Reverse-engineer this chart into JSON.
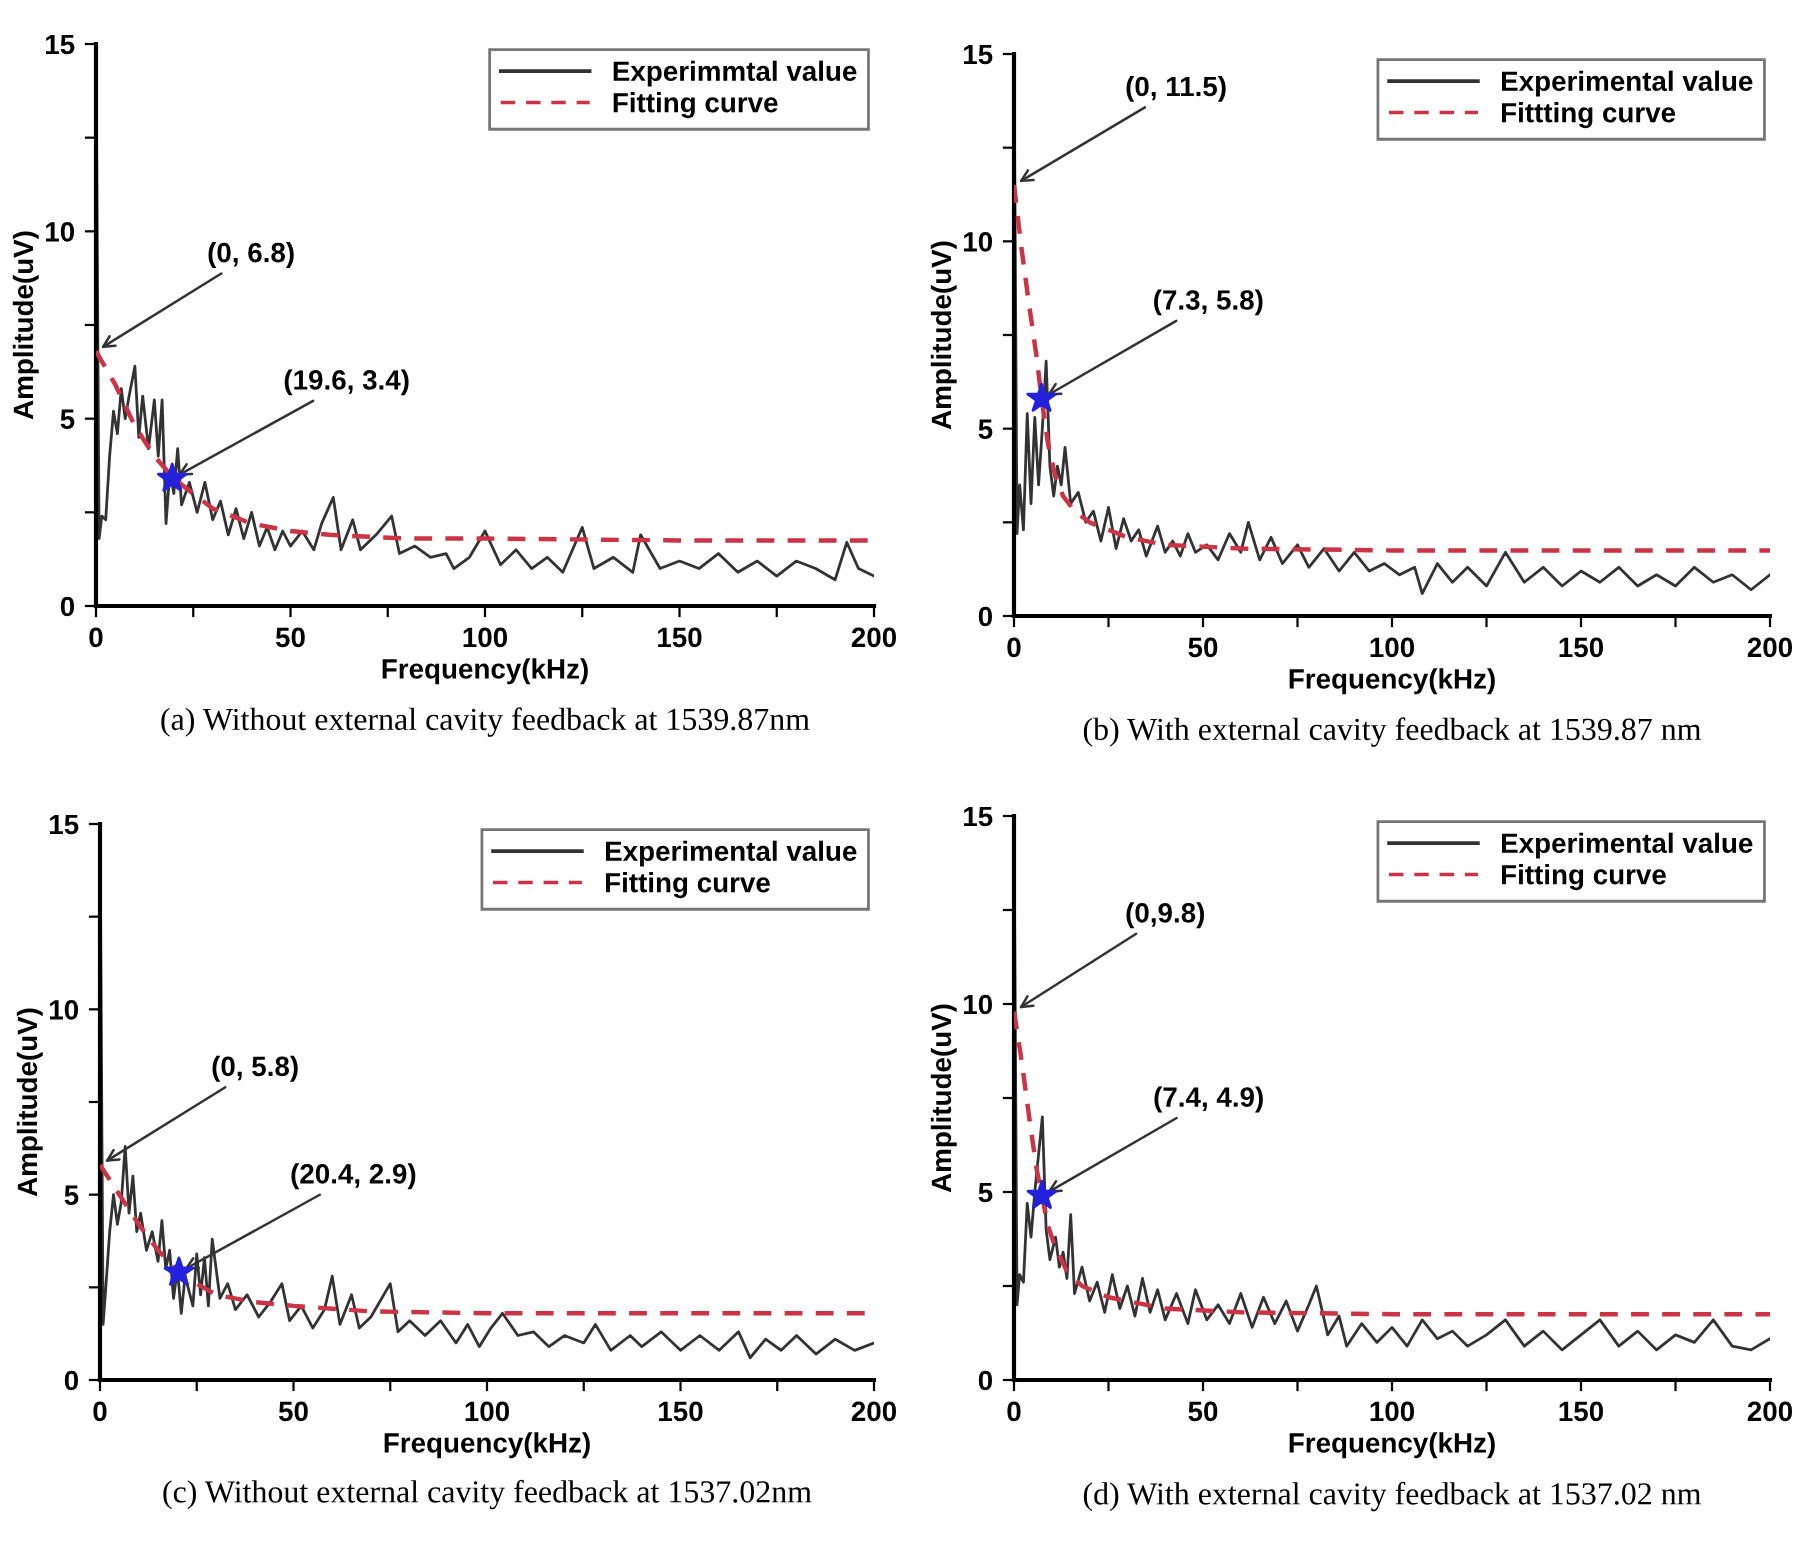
{
  "chart_data": [
    {
      "type": "line",
      "title": "(a) Without external cavity feedback at 1539.87nm",
      "xlabel": "Frequency(kHz)",
      "ylabel": "Amplitude(uV)",
      "xlim": [
        0,
        200
      ],
      "ylim": [
        0,
        15
      ],
      "xticks": [
        0,
        {
          "value": 25,
          "label": null
        },
        50,
        {
          "value": 75,
          "label": null
        },
        100,
        {
          "value": 125,
          "label": null
        },
        150,
        {
          "value": 175,
          "label": null
        },
        200
      ],
      "yticks": [
        0,
        {
          "value": 2.5,
          "label": null
        },
        5,
        {
          "value": 7.5,
          "label": null
        },
        10,
        {
          "value": 12.5,
          "label": null
        },
        15
      ],
      "grid": false,
      "legend": "top right",
      "annotations": [
        {
          "text": "(0, 6.8)",
          "x": 0,
          "y": 6.8
        },
        {
          "text": "(19.6, 3.4)",
          "x": 19.6,
          "y": 3.4
        }
      ],
      "series": [
        {
          "name": "Experimmtal value",
          "line_style": "solid",
          "color": "#333333",
          "x": [
            0,
            0.8,
            1.5,
            2.5,
            3.5,
            4.5,
            5.5,
            6.5,
            7.5,
            8.5,
            10,
            11,
            12,
            13.5,
            15,
            16,
            17,
            18,
            19,
            20,
            21,
            22,
            24,
            26,
            28,
            30,
            32,
            34,
            36,
            38,
            40,
            42,
            44,
            46,
            48,
            50,
            53,
            56,
            58,
            61,
            63,
            66,
            68,
            72,
            76,
            78,
            82,
            86,
            90,
            92,
            96,
            100,
            104,
            108,
            112,
            116,
            120,
            125,
            128,
            133,
            138,
            140,
            145,
            150,
            155,
            160,
            165,
            170,
            175,
            180,
            185,
            190,
            193,
            196,
            200
          ],
          "values": [
            15,
            1.8,
            2.4,
            2.3,
            4.0,
            5.2,
            4.6,
            5.8,
            5.0,
            5.6,
            6.4,
            4.5,
            5.6,
            4.2,
            5.5,
            4.0,
            5.5,
            2.2,
            3.6,
            3.0,
            4.2,
            2.7,
            3.3,
            2.5,
            3.3,
            2.3,
            2.8,
            1.9,
            2.6,
            1.8,
            2.5,
            1.6,
            2.1,
            1.5,
            2.0,
            1.6,
            2.0,
            1.5,
            2.2,
            2.9,
            1.5,
            2.3,
            1.5,
            1.9,
            2.4,
            1.4,
            1.6,
            1.3,
            1.4,
            1.0,
            1.3,
            2.0,
            1.1,
            1.5,
            1.0,
            1.3,
            0.9,
            2.1,
            1.0,
            1.3,
            0.9,
            1.9,
            1.0,
            1.2,
            1.0,
            1.4,
            0.9,
            1.2,
            0.8,
            1.2,
            1.0,
            0.7,
            1.7,
            1.0,
            0.8
          ]
        },
        {
          "name": "Fitting curve",
          "line_style": "dashed",
          "color": "#cc3344",
          "x": [
            0,
            5,
            10,
            15,
            20,
            25,
            30,
            40,
            50,
            60,
            80,
            100,
            150,
            200
          ],
          "values": [
            6.8,
            5.9,
            4.8,
            4.0,
            3.4,
            3.0,
            2.6,
            2.2,
            2.0,
            1.9,
            1.8,
            1.8,
            1.75,
            1.75
          ]
        },
        {
          "type": "scatter",
          "marker": "star",
          "color": "#2222dd",
          "x": [
            19.6
          ],
          "values": [
            3.4
          ]
        }
      ]
    },
    {
      "type": "line",
      "title": "(b) With external cavity feedback at 1539.87 nm",
      "xlabel": "Frequency(kHz)",
      "ylabel": "Amplitude(uV)",
      "xlim": [
        0,
        200
      ],
      "ylim": [
        0,
        15
      ],
      "xticks": [
        0,
        {
          "value": 25,
          "label": null
        },
        50,
        {
          "value": 75,
          "label": null
        },
        100,
        {
          "value": 125,
          "label": null
        },
        150,
        {
          "value": 175,
          "label": null
        },
        200
      ],
      "yticks": [
        0,
        {
          "value": 2.5,
          "label": null
        },
        5,
        {
          "value": 7.5,
          "label": null
        },
        10,
        {
          "value": 12.5,
          "label": null
        },
        15
      ],
      "grid": false,
      "legend": "top right",
      "annotations": [
        {
          "text": "(0, 11.5)",
          "x": 0,
          "y": 11.5
        },
        {
          "text": "(7.3, 5.8)",
          "x": 7.3,
          "y": 5.8
        }
      ],
      "series": [
        {
          "name": "Experimental value",
          "type": "line",
          "line_style": "solid",
          "color": "#333333",
          "x": [
            0,
            0.8,
            1.5,
            2.5,
            3.5,
            4.5,
            5.5,
            6.5,
            7.5,
            8.5,
            9.5,
            10.5,
            11.5,
            12.5,
            13.5,
            15,
            17,
            19,
            21,
            23,
            25,
            27,
            29,
            31,
            33,
            35,
            38,
            40,
            42,
            44,
            46,
            48,
            51,
            54,
            57,
            60,
            62,
            65,
            68,
            71,
            75,
            78,
            82,
            86,
            90,
            94,
            98,
            102,
            106,
            108,
            112,
            116,
            120,
            125,
            130,
            135,
            140,
            145,
            150,
            155,
            160,
            165,
            170,
            175,
            180,
            185,
            190,
            195,
            200
          ],
          "values": [
            15,
            2.2,
            3.5,
            2.3,
            5.4,
            3.0,
            5.3,
            3.5,
            5.0,
            6.8,
            4.0,
            3.2,
            4.0,
            3.5,
            4.5,
            3.0,
            3.3,
            2.5,
            2.8,
            2.0,
            2.9,
            1.8,
            2.6,
            2.0,
            2.3,
            1.6,
            2.4,
            1.7,
            2.0,
            1.6,
            2.2,
            1.7,
            1.9,
            1.5,
            2.2,
            1.7,
            2.5,
            1.5,
            2.1,
            1.4,
            1.9,
            1.3,
            1.8,
            1.2,
            1.7,
            1.2,
            1.4,
            1.1,
            1.3,
            0.6,
            1.4,
            0.9,
            1.3,
            0.8,
            1.7,
            0.9,
            1.3,
            0.8,
            1.2,
            0.9,
            1.3,
            0.8,
            1.1,
            0.8,
            1.3,
            0.9,
            1.1,
            0.7,
            1.1
          ]
        },
        {
          "name": "Fittting curve",
          "line_style": "dashed",
          "color": "#cc3344",
          "x": [
            0,
            2,
            4,
            6,
            7.3,
            9,
            11,
            13,
            16,
            20,
            30,
            40,
            60,
            100,
            200
          ],
          "values": [
            11.5,
            9.8,
            8.3,
            6.9,
            5.8,
            4.6,
            3.7,
            3.2,
            2.8,
            2.5,
            2.1,
            1.9,
            1.8,
            1.75,
            1.75
          ]
        },
        {
          "type": "scatter",
          "marker": "star",
          "color": "#2222dd",
          "x": [
            7.3
          ],
          "values": [
            5.8
          ]
        }
      ]
    },
    {
      "type": "line",
      "title": "(c) Without external cavity feedback at 1537.02nm",
      "xlabel": "Frequency(kHz)",
      "ylabel": "Amplitude(uV)",
      "xlim": [
        0,
        200
      ],
      "ylim": [
        0,
        15
      ],
      "xticks": [
        0,
        {
          "value": 25,
          "label": null
        },
        50,
        {
          "value": 75,
          "label": null
        },
        100,
        {
          "value": 125,
          "label": null
        },
        150,
        {
          "value": 175,
          "label": null
        },
        200
      ],
      "yticks": [
        0,
        {
          "value": 2.5,
          "label": null
        },
        5,
        {
          "value": 7.5,
          "label": null
        },
        10,
        {
          "value": 12.5,
          "label": null
        },
        15
      ],
      "grid": false,
      "legend": "top right",
      "annotations": [
        {
          "text": "(0, 5.8)",
          "x": 0,
          "y": 5.8
        },
        {
          "text": "(20.4, 2.9)",
          "x": 20.4,
          "y": 2.9
        }
      ],
      "series": [
        {
          "name": "Experimental value",
          "type": "line",
          "line_style": "solid",
          "color": "#333333",
          "x": [
            0,
            0.8,
            1.5,
            2.5,
            3.5,
            4.5,
            5.5,
            6.5,
            7.5,
            8.5,
            9.5,
            10.5,
            12,
            13.5,
            15,
            16,
            17,
            18,
            19,
            20,
            21,
            22,
            24,
            25,
            26,
            27,
            28,
            29,
            31,
            33,
            35,
            38,
            41,
            44,
            47,
            49,
            52,
            55,
            58,
            60,
            62,
            65,
            67,
            70,
            75,
            77,
            80,
            84,
            88,
            92,
            95,
            98,
            101,
            104,
            108,
            112,
            116,
            120,
            125,
            128,
            132,
            137,
            140,
            145,
            150,
            155,
            160,
            165,
            168,
            172,
            176,
            180,
            185,
            190,
            195,
            200
          ],
          "values": [
            15,
            1.5,
            2.5,
            4.0,
            5.0,
            4.2,
            4.8,
            6.3,
            4.5,
            5.5,
            4.0,
            4.5,
            3.5,
            4.0,
            3.2,
            4.3,
            3.0,
            3.5,
            2.2,
            3.0,
            1.8,
            2.8,
            2.0,
            3.4,
            2.3,
            3.3,
            2.0,
            3.8,
            2.2,
            2.6,
            1.9,
            2.3,
            1.7,
            2.1,
            2.6,
            1.6,
            2.0,
            1.4,
            1.9,
            2.8,
            1.5,
            2.3,
            1.4,
            1.7,
            2.6,
            1.3,
            1.6,
            1.2,
            1.6,
            1.0,
            1.5,
            0.9,
            1.4,
            1.8,
            1.2,
            1.3,
            0.9,
            1.2,
            1.0,
            1.5,
            0.8,
            1.2,
            0.9,
            1.3,
            0.8,
            1.2,
            0.8,
            1.3,
            0.6,
            1.1,
            0.8,
            1.2,
            0.7,
            1.1,
            0.8,
            1.0
          ]
        },
        {
          "name": "Fitting curve",
          "type": "line",
          "line_style": "dashed",
          "color": "#cc3344",
          "x": [
            0,
            5,
            10,
            15,
            20.4,
            25,
            30,
            40,
            50,
            70,
            100,
            200
          ],
          "values": [
            5.8,
            5.0,
            4.2,
            3.5,
            2.9,
            2.6,
            2.3,
            2.1,
            2.0,
            1.85,
            1.8,
            1.8
          ]
        },
        {
          "type": "scatter",
          "marker": "star",
          "color": "#2222dd",
          "x": [
            20.4
          ],
          "values": [
            2.9
          ]
        }
      ]
    },
    {
      "type": "line",
      "title": "(d) With external cavity feedback at 1537.02 nm",
      "xlabel": "Frequency(kHz)",
      "ylabel": "Amplitude(uV)",
      "xlim": [
        0,
        200
      ],
      "ylim": [
        0,
        15
      ],
      "xticks": [
        0,
        {
          "value": 25,
          "label": null
        },
        50,
        {
          "value": 75,
          "label": null
        },
        100,
        {
          "value": 125,
          "label": null
        },
        150,
        {
          "value": 175,
          "label": null
        },
        200
      ],
      "yticks": [
        0,
        {
          "value": 2.5,
          "label": null
        },
        5,
        {
          "value": 7.5,
          "label": null
        },
        10,
        {
          "value": 12.5,
          "label": null
        },
        15
      ],
      "grid": false,
      "legend": "top right",
      "annotations": [
        {
          "text": "(0,9.8)",
          "x": 0,
          "y": 9.8
        },
        {
          "text": "(7.4, 4.9)",
          "x": 7.4,
          "y": 4.9
        }
      ],
      "series": [
        {
          "name": "Experimental value",
          "type": "line",
          "line_style": "solid",
          "color": "#333333",
          "x": [
            0,
            0.8,
            1.5,
            2.5,
            3.5,
            4.5,
            5.5,
            6.5,
            7.5,
            8.5,
            9.5,
            11,
            12,
            13,
            14,
            15,
            16,
            18,
            20,
            22,
            24,
            26,
            28,
            30,
            32,
            34,
            36,
            38,
            40,
            43,
            46,
            48,
            51,
            54,
            57,
            60,
            63,
            66,
            69,
            72,
            75,
            78,
            80,
            83,
            86,
            88,
            92,
            96,
            100,
            104,
            108,
            112,
            116,
            120,
            125,
            130,
            135,
            140,
            145,
            150,
            155,
            160,
            165,
            170,
            175,
            180,
            185,
            190,
            195,
            200
          ],
          "values": [
            15,
            2.0,
            2.8,
            2.6,
            4.7,
            3.8,
            5.0,
            6.0,
            7.0,
            4.0,
            3.2,
            3.8,
            3.0,
            3.4,
            2.7,
            4.4,
            2.3,
            3.0,
            2.1,
            2.6,
            1.8,
            2.8,
            1.9,
            2.5,
            1.7,
            2.7,
            1.8,
            2.4,
            1.6,
            2.3,
            1.5,
            2.4,
            1.6,
            2.0,
            1.5,
            2.3,
            1.4,
            2.2,
            1.5,
            2.1,
            1.3,
            2.0,
            2.5,
            1.2,
            1.7,
            0.9,
            1.5,
            1.0,
            1.4,
            0.9,
            1.6,
            1.1,
            1.3,
            0.9,
            1.2,
            1.6,
            0.9,
            1.3,
            0.8,
            1.2,
            1.6,
            0.9,
            1.3,
            0.8,
            1.2,
            1.0,
            1.6,
            0.9,
            0.8,
            1.1
          ]
        },
        {
          "name": "Fitting curve",
          "type": "line",
          "line_style": "dashed",
          "color": "#cc3344",
          "x": [
            0,
            2,
            4,
            6,
            7.4,
            9,
            11,
            14,
            18,
            25,
            40,
            60,
            100,
            200
          ],
          "values": [
            9.8,
            8.5,
            7.0,
            5.6,
            4.9,
            4.1,
            3.5,
            2.9,
            2.5,
            2.2,
            1.9,
            1.8,
            1.75,
            1.75
          ]
        },
        {
          "type": "scatter",
          "marker": "star",
          "color": "#2222dd",
          "x": [
            7.4
          ],
          "values": [
            4.9
          ]
        }
      ]
    }
  ]
}
